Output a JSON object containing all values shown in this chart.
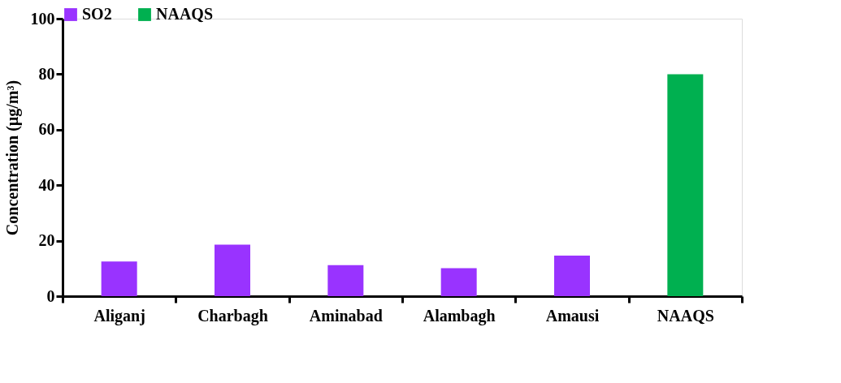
{
  "chart_data": {
    "type": "bar",
    "ylabel": "Concentration (µg/m³)",
    "categories": [
      "Aliganj",
      "Charbagh",
      "Aminabad",
      "Alambagh",
      "Amausi",
      "NAAQS"
    ],
    "series": [
      {
        "name": "SO2",
        "color": "#9933ff",
        "values": [
          12.5,
          18.6,
          11.2,
          10.1,
          14.6,
          null
        ]
      },
      {
        "name": "NAAQS",
        "color": "#00b050",
        "values": [
          null,
          null,
          null,
          null,
          null,
          80
        ]
      }
    ],
    "ylim": [
      0,
      100
    ],
    "yticks": [
      0,
      20,
      40,
      60,
      80,
      100
    ],
    "grid": false,
    "legend": "top"
  }
}
